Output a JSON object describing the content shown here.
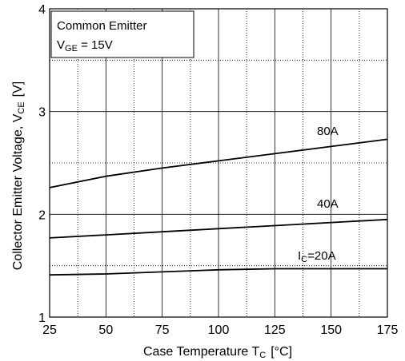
{
  "chart_data": {
    "type": "line",
    "xlabel_main": "Case Temperature T",
    "xlabel_sub": "C",
    "xlabel_unit": "[°C]",
    "ylabel_main": "Collector Emitter Voltage, V",
    "ylabel_sub": "CE",
    "ylabel_unit": "[V]",
    "xlim": [
      25,
      175
    ],
    "ylim": [
      1,
      4
    ],
    "x_ticks": [
      25,
      50,
      75,
      100,
      125,
      150,
      175
    ],
    "y_ticks": [
      1,
      2,
      3,
      4
    ],
    "x_tick_labels": [
      "25",
      "50",
      "75",
      "100",
      "125",
      "150",
      "175"
    ],
    "y_tick_labels": [
      "1",
      "2",
      "3",
      "4"
    ],
    "grid": true,
    "legend_box": {
      "line1": "Common Emitter",
      "line2_main": "V",
      "line2_sub": "GE",
      "line2_rest": " = 15V"
    },
    "series": [
      {
        "name": "80A",
        "x": [
          25,
          50,
          75,
          100,
          125,
          150,
          175
        ],
        "values": [
          2.26,
          2.37,
          2.45,
          2.52,
          2.59,
          2.66,
          2.73
        ]
      },
      {
        "name": "40A",
        "x": [
          25,
          50,
          75,
          100,
          125,
          150,
          175
        ],
        "values": [
          1.77,
          1.8,
          1.83,
          1.86,
          1.89,
          1.92,
          1.95
        ]
      },
      {
        "name": "20A",
        "label_main": "I",
        "label_sub": "C",
        "label_rest": "=20A",
        "x": [
          25,
          50,
          75,
          100,
          125,
          150,
          175
        ],
        "values": [
          1.41,
          1.42,
          1.44,
          1.46,
          1.47,
          1.47,
          1.47
        ]
      }
    ]
  }
}
